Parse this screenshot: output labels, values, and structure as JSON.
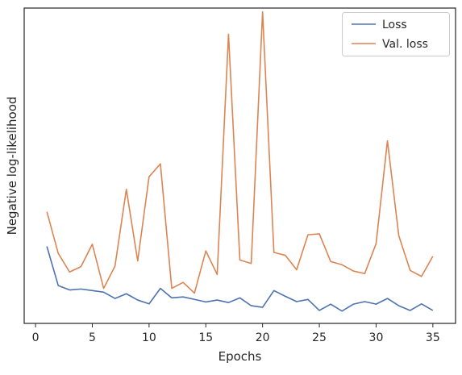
{
  "chart_data": {
    "type": "line",
    "title": "",
    "xlabel": "Epochs",
    "ylabel": "Negative log-likelihood",
    "xlim": [
      -1.0,
      37.0
    ],
    "ylim": [
      0,
      100
    ],
    "xticks": [
      0,
      5,
      10,
      15,
      20,
      25,
      30,
      35
    ],
    "yticks": [],
    "grid": false,
    "legend_position": "top-right",
    "x": [
      1,
      2,
      3,
      4,
      5,
      6,
      7,
      8,
      9,
      10,
      11,
      12,
      13,
      14,
      15,
      16,
      17,
      18,
      19,
      20,
      21,
      22,
      23,
      24,
      25,
      26,
      27,
      28,
      29,
      30,
      31,
      32,
      33,
      34,
      35
    ],
    "series": [
      {
        "name": "Loss",
        "color": "#4c72b0",
        "values": [
          24.4,
          12.0,
          10.6,
          10.9,
          10.4,
          9.9,
          7.9,
          9.4,
          7.4,
          6.2,
          11.1,
          8.1,
          8.4,
          7.6,
          6.8,
          7.4,
          6.6,
          8.1,
          5.6,
          5.1,
          10.4,
          8.6,
          6.9,
          7.6,
          4.1,
          6.1,
          3.9,
          6.1,
          6.9,
          6.1,
          7.9,
          5.6,
          4.1,
          6.2,
          4.1
        ]
      },
      {
        "name": "Val. loss",
        "color": "#dd8452",
        "values": [
          35.4,
          22.2,
          16.3,
          18.0,
          25.1,
          11.1,
          18.2,
          42.5,
          19.8,
          46.5,
          50.6,
          11.1,
          13.0,
          9.6,
          23.0,
          15.5,
          91.7,
          20.1,
          19.0,
          98.8,
          22.5,
          21.6,
          17.0,
          28.1,
          28.4,
          19.6,
          18.6,
          16.6,
          15.8,
          25.3,
          57.9,
          27.8,
          16.8,
          14.9,
          21.3
        ]
      }
    ]
  }
}
